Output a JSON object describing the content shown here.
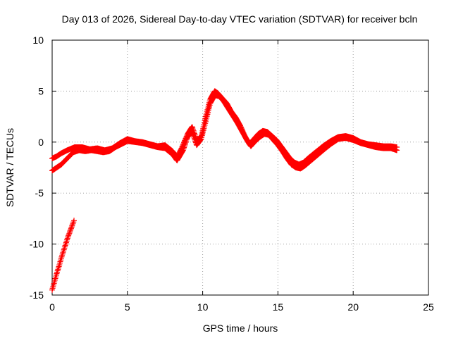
{
  "chart_data": {
    "type": "scatter",
    "title": "Day 013 of 2026, Sidereal Day-to-day VTEC variation (SDTVAR) for receiver bcln",
    "xlabel": "GPS time / hours",
    "ylabel": "SDTVAR / TECUs",
    "xlim": [
      0,
      25
    ],
    "ylim": [
      -15,
      10
    ],
    "xticks": [
      "0",
      "5",
      "10",
      "15",
      "20",
      "25"
    ],
    "yticks": [
      "-15",
      "-10",
      "-5",
      "0",
      "5",
      "10"
    ],
    "grid": true,
    "marker": "+",
    "color": "#ff0000",
    "series": [
      {
        "name": "sdtvar-main",
        "x": [
          0.0,
          0.3,
          0.6,
          1.0,
          1.5,
          2.0,
          2.5,
          3.0,
          3.5,
          4.0,
          4.5,
          5.0,
          5.5,
          6.0,
          6.5,
          7.0,
          7.5,
          8.0,
          8.3,
          8.6,
          9.0,
          9.3,
          9.6,
          9.9,
          10.2,
          10.5,
          10.8,
          11.0,
          11.3,
          11.6,
          11.9,
          12.2,
          12.5,
          12.8,
          13.1,
          13.4,
          13.7,
          14.0,
          14.3,
          14.6,
          14.9,
          15.2,
          15.5,
          15.8,
          16.1,
          16.4,
          16.7,
          17.0,
          17.5,
          18.0,
          18.5,
          19.0,
          19.5,
          20.0,
          20.5,
          21.0,
          21.5,
          22.0,
          22.5,
          22.9
        ],
        "y": [
          -1.6,
          -1.4,
          -1.1,
          -0.8,
          -0.5,
          -0.5,
          -0.7,
          -0.6,
          -0.8,
          -0.6,
          -0.1,
          0.3,
          0.1,
          0.0,
          -0.2,
          -0.4,
          -0.3,
          -0.9,
          -1.5,
          -0.6,
          0.8,
          1.5,
          0.2,
          0.5,
          2.5,
          4.2,
          5.0,
          4.8,
          4.3,
          3.8,
          3.0,
          2.4,
          1.6,
          0.6,
          -0.2,
          0.3,
          0.8,
          1.1,
          1.0,
          0.6,
          0.2,
          -0.4,
          -1.0,
          -1.6,
          -2.0,
          -2.2,
          -2.0,
          -1.6,
          -1.0,
          -0.4,
          0.1,
          0.5,
          0.6,
          0.4,
          0.0,
          -0.2,
          -0.3,
          -0.4,
          -0.4,
          -0.5
        ]
      },
      {
        "name": "sdtvar-secondary",
        "x": [
          0.0,
          0.3,
          0.6,
          1.0,
          1.4,
          1.8,
          2.2,
          2.6,
          3.0,
          3.4,
          3.8,
          4.2,
          4.6,
          5.0,
          5.5,
          6.0,
          6.5,
          7.0,
          7.5,
          8.0,
          8.3,
          8.7,
          9.0,
          9.3,
          9.6,
          9.9,
          10.2,
          10.5,
          10.8,
          11.1,
          11.4,
          11.7,
          12.0,
          12.3,
          12.6,
          12.9,
          13.2,
          13.5,
          13.8,
          14.1,
          14.4,
          14.7,
          15.0,
          15.3,
          15.6,
          15.9,
          16.2,
          16.5,
          16.8,
          17.2,
          17.6,
          18.0,
          18.5,
          19.0,
          19.5,
          20.0,
          20.5,
          21.0,
          21.5,
          22.0,
          22.5,
          22.9
        ],
        "y": [
          -2.8,
          -2.5,
          -2.2,
          -1.6,
          -1.0,
          -0.8,
          -0.9,
          -0.8,
          -0.9,
          -1.0,
          -0.9,
          -0.5,
          -0.2,
          0.1,
          0.0,
          -0.1,
          -0.3,
          -0.5,
          -0.6,
          -1.2,
          -1.8,
          -0.8,
          0.5,
          1.0,
          -0.3,
          0.3,
          2.0,
          3.8,
          4.6,
          4.5,
          4.0,
          3.3,
          2.6,
          1.9,
          1.1,
          0.3,
          -0.4,
          0.1,
          0.5,
          0.8,
          0.7,
          0.2,
          -0.3,
          -0.9,
          -1.6,
          -2.2,
          -2.5,
          -2.6,
          -2.3,
          -1.8,
          -1.3,
          -0.8,
          -0.2,
          0.3,
          0.4,
          0.2,
          -0.1,
          -0.3,
          -0.5,
          -0.6,
          -0.6,
          -0.8
        ]
      },
      {
        "name": "sdtvar-start-segment",
        "x": [
          0.0,
          0.15,
          0.3,
          0.45,
          0.6,
          0.75,
          0.9,
          1.05,
          1.2,
          1.35,
          1.45
        ],
        "y": [
          -14.5,
          -13.7,
          -12.9,
          -12.2,
          -11.4,
          -10.7,
          -10.0,
          -9.3,
          -8.7,
          -8.1,
          -7.7
        ]
      }
    ]
  }
}
